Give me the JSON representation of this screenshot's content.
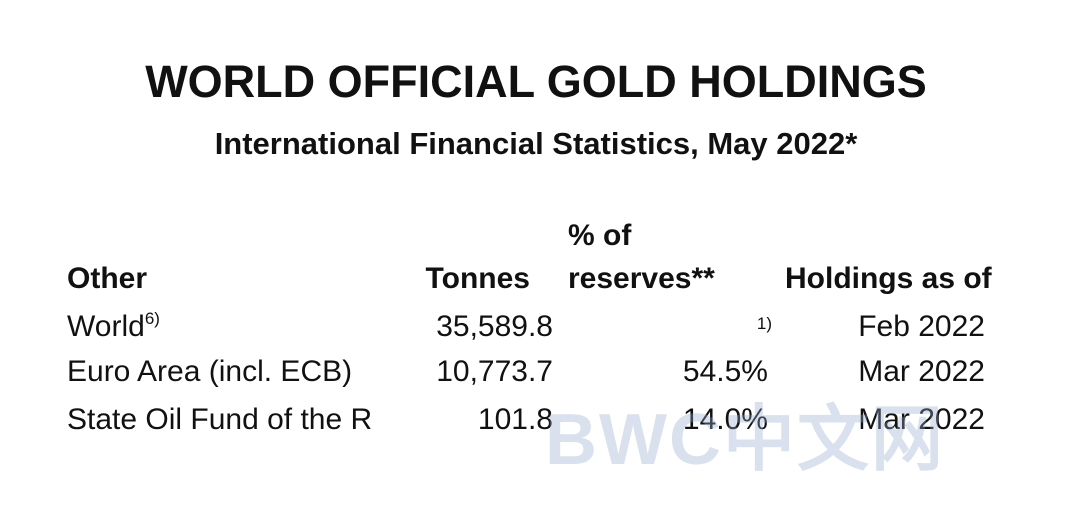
{
  "header": {
    "title": "WORLD OFFICIAL GOLD HOLDINGS",
    "subtitle": "International Financial Statistics, May 2022*"
  },
  "table": {
    "columns": [
      "Other",
      "Tonnes",
      "% of reserves**",
      "Holdings as of"
    ],
    "rows": [
      {
        "name": "World",
        "name_note": "6)",
        "tonnes": "35,589.8",
        "percent": "",
        "percent_note": "1)",
        "date": "Feb 2022"
      },
      {
        "name": "Euro Area (incl. ECB)",
        "tonnes": "10,773.7",
        "percent": "54.5%",
        "date": "Mar 2022"
      },
      {
        "name": "State Oil Fund of the R",
        "tonnes": "101.8",
        "percent": "14.0%",
        "date": "Mar 2022"
      }
    ]
  },
  "watermark": "BWC中文网"
}
